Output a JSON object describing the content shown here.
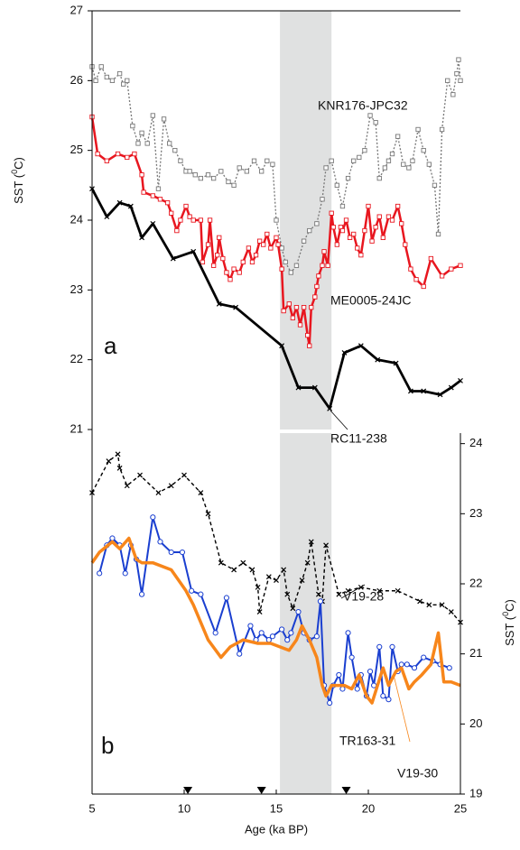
{
  "chart_data": [
    {
      "type": "line",
      "label": "a",
      "ylabel": [
        "SST (",
        "0",
        "C)"
      ],
      "xlim": [
        5,
        25
      ],
      "ylim": [
        21,
        27
      ],
      "yticks": [
        21,
        22,
        23,
        24,
        25,
        26,
        27
      ],
      "yaxis_side": "left",
      "shade": [
        15.2,
        18
      ],
      "series": [
        {
          "name": "KNR176-JPC32",
          "color": "#777777",
          "line_style": "dotted",
          "marker": "square",
          "linewidth": 1.3,
          "x": [
            5.0,
            5.2,
            5.5,
            5.8,
            6.1,
            6.5,
            6.7,
            6.9,
            7.2,
            7.5,
            7.7,
            8.0,
            8.3,
            8.6,
            8.9,
            9.2,
            9.5,
            9.8,
            10.1,
            10.3,
            10.6,
            10.9,
            11.3,
            11.6,
            12.0,
            12.4,
            12.7,
            13.0,
            13.4,
            13.8,
            14.2,
            14.5,
            14.8,
            15.0,
            15.3,
            15.5,
            15.8,
            16.1,
            16.5,
            16.8,
            17.2,
            17.5,
            17.7,
            18.0,
            18.3,
            18.6,
            18.9,
            19.2,
            19.5,
            19.8,
            20.1,
            20.4,
            20.6,
            20.9,
            21.1,
            21.3,
            21.6,
            21.9,
            22.2,
            22.4,
            22.7,
            23.0,
            23.3,
            23.6,
            23.8,
            24.0,
            24.3,
            24.6,
            24.8,
            24.9,
            25.0
          ],
          "values": [
            26.2,
            26.0,
            26.2,
            26.05,
            26.0,
            26.1,
            25.95,
            26.0,
            25.35,
            25.1,
            25.25,
            25.1,
            25.5,
            24.45,
            25.45,
            25.1,
            25.0,
            24.85,
            24.7,
            24.7,
            24.65,
            24.6,
            24.65,
            24.6,
            24.7,
            24.55,
            24.5,
            24.75,
            24.7,
            24.85,
            24.7,
            24.85,
            24.8,
            24.0,
            23.6,
            23.4,
            23.25,
            23.35,
            23.7,
            23.85,
            23.95,
            24.3,
            24.75,
            24.85,
            24.5,
            24.2,
            24.6,
            24.85,
            24.9,
            25.0,
            25.5,
            25.4,
            24.6,
            24.75,
            24.85,
            24.95,
            25.2,
            24.8,
            24.75,
            24.85,
            25.3,
            25.0,
            24.8,
            24.5,
            23.8,
            25.3,
            26.0,
            25.8,
            26.1,
            26.3,
            26.0
          ]
        },
        {
          "name": "ME0005-24JC",
          "color": "#e8161f",
          "line_style": "solid",
          "marker": "square",
          "linewidth": 2.5,
          "x": [
            5.0,
            5.3,
            5.8,
            6.4,
            6.9,
            7.3,
            7.7,
            7.8,
            8.3,
            8.7,
            9.1,
            9.3,
            9.6,
            9.8,
            10.1,
            10.3,
            10.5,
            10.9,
            11.0,
            11.3,
            11.4,
            11.6,
            11.8,
            11.9,
            12.1,
            12.3,
            12.5,
            12.7,
            13.0,
            13.2,
            13.5,
            13.7,
            13.9,
            14.1,
            14.3,
            14.5,
            14.7,
            15.0,
            15.1,
            15.3,
            15.4,
            15.7,
            15.9,
            16.1,
            16.3,
            16.5,
            16.7,
            16.8,
            16.9,
            17.1,
            17.2,
            17.3,
            17.5,
            17.6,
            17.8,
            18.0,
            18.1,
            18.3,
            18.5,
            18.6,
            18.8,
            19.0,
            19.2,
            19.4,
            19.6,
            19.8,
            20.0,
            20.2,
            20.4,
            20.6,
            20.8,
            21.1,
            21.3,
            21.6,
            21.8,
            22.0,
            22.3,
            22.6,
            23.0,
            23.4,
            24.0,
            24.5,
            25.0
          ],
          "values": [
            25.48,
            24.95,
            24.85,
            24.95,
            24.9,
            24.95,
            24.65,
            24.4,
            24.35,
            24.3,
            24.25,
            24.1,
            23.85,
            24.0,
            24.2,
            24.05,
            24.0,
            24.0,
            23.4,
            23.65,
            24.0,
            23.35,
            23.5,
            23.75,
            23.45,
            23.25,
            23.15,
            23.3,
            23.25,
            23.4,
            23.6,
            23.4,
            23.5,
            23.7,
            23.65,
            23.8,
            23.6,
            23.75,
            23.65,
            23.3,
            22.7,
            22.8,
            22.6,
            22.75,
            22.5,
            22.75,
            22.35,
            22.2,
            22.75,
            22.9,
            23.05,
            23.2,
            23.35,
            23.55,
            23.35,
            24.1,
            23.9,
            23.65,
            23.9,
            23.85,
            24.0,
            23.75,
            23.8,
            23.6,
            23.5,
            23.85,
            24.2,
            23.7,
            23.9,
            24.05,
            23.75,
            24.05,
            24.0,
            24.2,
            23.95,
            23.65,
            23.3,
            23.15,
            23.05,
            23.45,
            23.2,
            23.3,
            23.35
          ]
        },
        {
          "name": "RC11-238",
          "color": "#000000",
          "line_style": "solid",
          "marker": "x",
          "linewidth": 2.8,
          "x": [
            5.0,
            5.8,
            6.5,
            7.1,
            7.7,
            8.3,
            9.4,
            10.5,
            11.9,
            12.8,
            15.3,
            16.2,
            17.1,
            17.9,
            18.7,
            19.6,
            20.5,
            21.5,
            22.3,
            23.0,
            23.9,
            24.5,
            25.0
          ],
          "values": [
            24.45,
            24.05,
            24.25,
            24.2,
            23.75,
            23.95,
            23.45,
            23.55,
            22.8,
            22.75,
            22.2,
            21.6,
            21.6,
            21.3,
            22.1,
            22.2,
            22.0,
            21.95,
            21.55,
            21.55,
            21.5,
            21.6,
            21.7
          ]
        }
      ]
    },
    {
      "type": "line",
      "label": "b",
      "ylabel": [
        "SST (",
        "0",
        "C)"
      ],
      "xlabel": "Age (ka BP)",
      "xlim": [
        5,
        25
      ],
      "xticks": [
        5,
        10,
        15,
        20,
        25
      ],
      "ylim": [
        19,
        24.15
      ],
      "yticks": [
        19,
        20,
        21,
        22,
        23,
        24
      ],
      "yaxis_side": "right",
      "shade": [
        15.2,
        18
      ],
      "markers": [
        10.2,
        14.2,
        18.8
      ],
      "series": [
        {
          "name": "V19-28",
          "color": "#000000",
          "line_style": "dashed",
          "marker": "x",
          "linewidth": 1.4,
          "x": [
            5.0,
            5.9,
            6.4,
            6.5,
            6.9,
            7.6,
            8.6,
            9.3,
            10.0,
            10.9,
            11.3,
            12.0,
            12.7,
            13.2,
            13.7,
            14.0,
            14.1,
            14.6,
            15.0,
            15.4,
            15.6,
            15.9,
            16.4,
            16.7,
            16.9,
            17.3,
            17.5,
            17.7,
            18.4,
            18.9,
            19.6,
            20.6,
            21.6,
            22.8,
            23.3,
            24.0,
            24.5,
            25.0
          ],
          "values": [
            23.3,
            23.75,
            23.85,
            23.65,
            23.4,
            23.55,
            23.3,
            23.4,
            23.55,
            23.3,
            23.0,
            22.3,
            22.2,
            22.3,
            22.2,
            21.95,
            21.6,
            22.1,
            22.05,
            22.2,
            21.85,
            21.65,
            22.05,
            22.3,
            22.6,
            21.85,
            21.75,
            22.55,
            21.85,
            21.9,
            21.95,
            21.9,
            21.9,
            21.75,
            21.7,
            21.7,
            21.6,
            21.45
          ]
        },
        {
          "name": "TR163-31",
          "color": "#1a3fd0",
          "line_style": "solid",
          "marker": "circle",
          "linewidth": 2,
          "x": [
            5.4,
            5.8,
            6.1,
            6.5,
            6.8,
            7.1,
            7.4,
            7.7,
            8.3,
            8.7,
            9.3,
            9.9,
            10.4,
            10.9,
            11.7,
            12.3,
            13.0,
            13.6,
            13.9,
            14.2,
            14.6,
            14.8,
            15.3,
            15.6,
            15.8,
            16.2,
            16.5,
            16.8,
            17.2,
            17.4,
            17.6,
            17.9,
            18.1,
            18.4,
            18.6,
            18.9,
            19.1,
            19.4,
            19.6,
            19.9,
            20.1,
            20.3,
            20.6,
            20.8,
            21.1,
            21.3,
            21.6,
            21.8,
            22.1,
            22.5,
            23.0,
            23.5,
            23.9,
            24.4
          ],
          "values": [
            22.15,
            22.55,
            22.65,
            22.55,
            22.15,
            22.55,
            22.35,
            21.85,
            22.95,
            22.6,
            22.45,
            22.45,
            21.9,
            21.85,
            21.3,
            21.8,
            21.0,
            21.4,
            21.2,
            21.3,
            21.2,
            21.25,
            21.35,
            21.2,
            21.3,
            21.6,
            21.3,
            21.2,
            21.25,
            21.75,
            20.55,
            20.3,
            20.55,
            20.7,
            20.5,
            21.3,
            20.95,
            20.5,
            20.7,
            20.4,
            20.75,
            20.55,
            21.1,
            20.4,
            20.35,
            21.1,
            20.75,
            20.85,
            20.85,
            20.8,
            20.95,
            20.9,
            20.85,
            20.8
          ]
        },
        {
          "name": "V19-30",
          "color": "#f7861b",
          "line_style": "solid",
          "marker": "none",
          "linewidth": 3.5,
          "x": [
            5.0,
            5.4,
            6.1,
            6.5,
            7.0,
            7.4,
            7.7,
            8.3,
            9.3,
            10.1,
            10.5,
            11.3,
            12.0,
            12.5,
            13.2,
            14.0,
            14.7,
            15.2,
            15.7,
            16.1,
            16.4,
            16.8,
            17.2,
            17.5,
            17.7,
            18.0,
            18.4,
            18.7,
            19.1,
            19.5,
            19.9,
            20.2,
            20.5,
            20.8,
            21.1,
            21.5,
            21.8,
            22.2,
            22.5,
            22.9,
            23.4,
            23.8,
            24.1,
            24.5,
            25.0
          ],
          "values": [
            22.3,
            22.45,
            22.6,
            22.5,
            22.65,
            22.35,
            22.3,
            22.3,
            22.2,
            21.9,
            21.7,
            21.2,
            20.95,
            21.1,
            21.2,
            21.15,
            21.15,
            21.1,
            21.05,
            21.2,
            21.4,
            21.2,
            20.95,
            20.55,
            20.4,
            20.55,
            20.55,
            20.55,
            20.5,
            20.7,
            20.4,
            20.3,
            20.55,
            20.8,
            20.55,
            20.75,
            20.8,
            20.5,
            20.6,
            20.7,
            20.85,
            21.3,
            20.6,
            20.6,
            20.55
          ]
        }
      ]
    }
  ]
}
